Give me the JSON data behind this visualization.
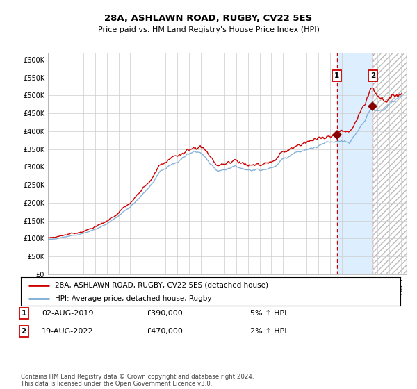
{
  "title": "28A, ASHLAWN ROAD, RUGBY, CV22 5ES",
  "subtitle": "Price paid vs. HM Land Registry's House Price Index (HPI)",
  "x_start_year": 1995,
  "x_end_year": 2025,
  "y_min": 0,
  "y_max": 620000,
  "y_ticks": [
    0,
    50000,
    100000,
    150000,
    200000,
    250000,
    300000,
    350000,
    400000,
    450000,
    500000,
    550000,
    600000
  ],
  "hpi_color": "#7aaad4",
  "price_color": "#cc0000",
  "marker_color": "#880000",
  "dashed_line_color": "#cc0000",
  "bg_highlight_color": "#ddeeff",
  "grid_color": "#cccccc",
  "point1_date": 2019.58,
  "point1_value": 390000,
  "point2_date": 2022.63,
  "point2_value": 470000,
  "legend_line1": "28A, ASHLAWN ROAD, RUGBY, CV22 5ES (detached house)",
  "legend_line2": "HPI: Average price, detached house, Rugby",
  "annotation1_date": "02-AUG-2019",
  "annotation1_price": "£390,000",
  "annotation1_change": "5% ↑ HPI",
  "annotation2_date": "19-AUG-2022",
  "annotation2_price": "£470,000",
  "annotation2_change": "2% ↑ HPI",
  "footer": "Contains HM Land Registry data © Crown copyright and database right 2024.\nThis data is licensed under the Open Government Licence v3.0."
}
